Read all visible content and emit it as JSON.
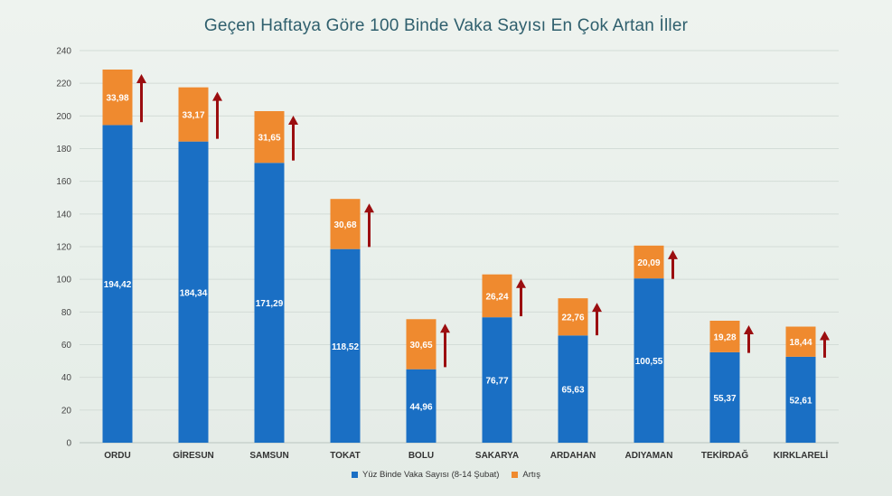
{
  "chart_data": {
    "type": "bar",
    "stacked": true,
    "title": "Geçen Haftaya Göre 100 Binde Vaka Sayısı En Çok Artan İller",
    "categories": [
      "ORDU",
      "GİRESUN",
      "SAMSUN",
      "TOKAT",
      "BOLU",
      "SAKARYA",
      "ARDAHAN",
      "ADIYAMAN",
      "TEKİRDAĞ",
      "KIRKLARELİ"
    ],
    "series": [
      {
        "name": "Yüz Binde Vaka Sayısı (8-14 Şubat)",
        "color": "#1a6fc4",
        "values": [
          194.42,
          184.34,
          171.29,
          118.52,
          44.96,
          76.77,
          65.63,
          100.55,
          55.37,
          52.61
        ],
        "labels": [
          "194,42",
          "184,34",
          "171,29",
          "118,52",
          "44,96",
          "76,77",
          "65,63",
          "100,55",
          "55,37",
          "52,61"
        ]
      },
      {
        "name": "Artış",
        "color": "#ef8a2f",
        "values": [
          33.98,
          33.17,
          31.65,
          30.68,
          30.65,
          26.24,
          22.76,
          20.09,
          19.28,
          18.44
        ],
        "labels": [
          "33,98",
          "33,17",
          "31,65",
          "30,68",
          "30,65",
          "26,24",
          "22,76",
          "20,09",
          "19,28",
          "18,44"
        ]
      }
    ],
    "ylim": [
      0,
      240
    ],
    "yticks": [
      0,
      20,
      40,
      60,
      80,
      100,
      120,
      140,
      160,
      180,
      200,
      220,
      240
    ],
    "grid": true,
    "legend": "bottom",
    "annotations": "dark red upward arrows beside each bar, length proportional to increase",
    "arrow_color": "#9b0e10"
  }
}
